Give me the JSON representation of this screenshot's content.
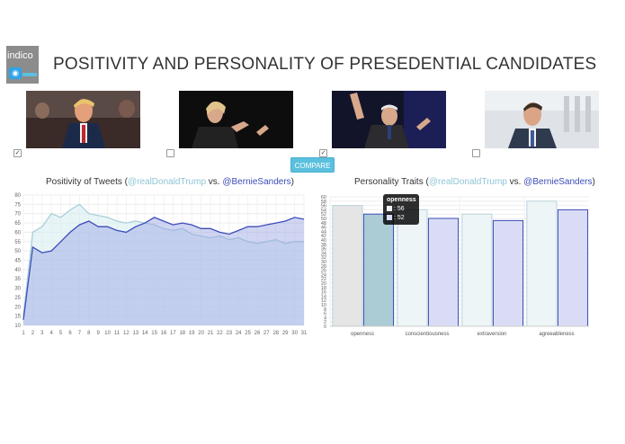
{
  "logo": {
    "text": "indico"
  },
  "header": {
    "title": "POSITIVITY AND PERSONALITY OF PRESEDENTIAL CANDIDATES"
  },
  "candidates": [
    {
      "checked": true
    },
    {
      "checked": false
    },
    {
      "checked": true
    },
    {
      "checked": false
    }
  ],
  "compare_button": {
    "label": "COMPARE"
  },
  "colors": {
    "accent": "#5bc0de",
    "series1": "#a9cfda",
    "series2": "#3b4cb8"
  },
  "line_chart": {
    "title_prefix": "Positivity of Tweets (",
    "handle1": "@realDonaldTrump",
    "vs": " vs. ",
    "handle2": "@BernieSanders",
    "title_suffix": ")"
  },
  "bar_chart": {
    "title_prefix": "Personality Traits (",
    "handle1": "@realDonaldTrump",
    "vs": " vs. ",
    "handle2": "@BernieSanders",
    "title_suffix": ")"
  },
  "tooltip": {
    "title": "openness",
    "row1": ": 56",
    "row2": ": 52"
  },
  "chart_data": [
    {
      "type": "area",
      "x": [
        1,
        2,
        3,
        4,
        5,
        6,
        7,
        8,
        9,
        10,
        11,
        12,
        13,
        14,
        15,
        16,
        17,
        18,
        19,
        20,
        21,
        22,
        23,
        24,
        25,
        26,
        27,
        28,
        29,
        30,
        31
      ],
      "ylim": [
        10,
        80
      ],
      "yticks": [
        10,
        15,
        20,
        25,
        30,
        35,
        40,
        45,
        50,
        55,
        60,
        65,
        70,
        75,
        80
      ],
      "series": [
        {
          "values": [
            15,
            60,
            63,
            70,
            68,
            72,
            75,
            70,
            69,
            68,
            66,
            65,
            66,
            65,
            64,
            62,
            61,
            62,
            59,
            58,
            57,
            58,
            56,
            57,
            55,
            54,
            55,
            56,
            54,
            55,
            55
          ]
        },
        {
          "values": [
            13,
            52,
            49,
            50,
            55,
            60,
            64,
            66,
            63,
            63,
            61,
            60,
            63,
            65,
            68,
            66,
            64,
            65,
            64,
            62,
            62,
            60,
            59,
            61,
            63,
            63,
            64,
            65,
            66,
            68,
            67
          ]
        }
      ]
    },
    {
      "type": "bar",
      "categories": [
        "openness",
        "conscientiousness",
        "extraversion",
        "agreeableness"
      ],
      "ylim": [
        0,
        60
      ],
      "yticks": [
        0,
        2,
        4,
        6,
        8,
        10,
        12,
        14,
        16,
        18,
        20,
        22,
        24,
        26,
        28,
        30,
        32,
        34,
        36,
        38,
        40,
        42,
        44,
        46,
        48,
        50,
        52,
        54,
        56,
        58,
        60
      ],
      "series": [
        {
          "values": [
            56,
            54,
            52,
            58
          ]
        },
        {
          "values": [
            52,
            50,
            49,
            54
          ]
        }
      ]
    }
  ]
}
